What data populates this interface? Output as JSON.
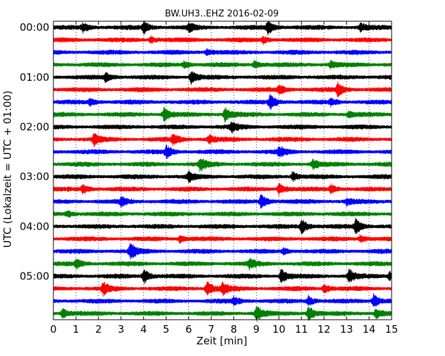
{
  "chart_data": {
    "type": "line",
    "title": "BW.UH3..EHZ 2016-02-09",
    "xlabel": "Zeit  [min]",
    "ylabel": "UTC (Lokalzeit = UTC + 01:00)",
    "xlim": [
      0,
      15
    ],
    "x_ticks": [
      "0",
      "1",
      "2",
      "3",
      "4",
      "5",
      "6",
      "7",
      "8",
      "9",
      "10",
      "11",
      "12",
      "13",
      "14",
      "15"
    ],
    "y_ticks": [
      "00:00",
      "01:00",
      "02:00",
      "03:00",
      "04:00",
      "05:00"
    ],
    "grid": "vertical dotted at each minute",
    "trace_colors": [
      "#000000",
      "#ff0000",
      "#0000ff",
      "#008000"
    ],
    "traces_per_hour": 4,
    "trace_minutes": 15,
    "hours_shown": 6,
    "traces": [
      {
        "start": "00:00",
        "color": "#000000",
        "events": [
          {
            "x": 1.3,
            "amp": 0.55
          },
          {
            "x": 4.0,
            "amp": 0.75
          },
          {
            "x": 6.0,
            "amp": 0.5
          },
          {
            "x": 9.5,
            "amp": 0.9
          },
          {
            "x": 13.6,
            "amp": 0.5
          }
        ]
      },
      {
        "start": "00:15",
        "color": "#ff0000",
        "events": [
          {
            "x": 4.3,
            "amp": 0.4
          },
          {
            "x": 9.3,
            "amp": 0.4
          }
        ]
      },
      {
        "start": "00:30",
        "color": "#0000ff",
        "events": [
          {
            "x": 6.8,
            "amp": 0.4
          }
        ]
      },
      {
        "start": "00:45",
        "color": "#008000",
        "events": [
          {
            "x": 5.8,
            "amp": 0.45
          },
          {
            "x": 8.9,
            "amp": 0.5
          },
          {
            "x": 12.3,
            "amp": 0.4
          }
        ]
      },
      {
        "start": "01:00",
        "color": "#000000",
        "events": [
          {
            "x": 2.3,
            "amp": 0.55
          },
          {
            "x": 6.1,
            "amp": 0.9
          }
        ]
      },
      {
        "start": "01:15",
        "color": "#ff0000",
        "events": [
          {
            "x": 10.0,
            "amp": 0.6
          },
          {
            "x": 12.6,
            "amp": 0.85
          }
        ]
      },
      {
        "start": "01:30",
        "color": "#0000ff",
        "events": [
          {
            "x": 1.6,
            "amp": 0.45
          },
          {
            "x": 9.6,
            "amp": 1.0
          },
          {
            "x": 12.3,
            "amp": 0.4
          }
        ]
      },
      {
        "start": "01:45",
        "color": "#008000",
        "events": [
          {
            "x": 4.9,
            "amp": 0.85
          },
          {
            "x": 7.6,
            "amp": 0.9
          },
          {
            "x": 13.1,
            "amp": 0.4
          }
        ]
      },
      {
        "start": "02:00",
        "color": "#000000",
        "events": [
          {
            "x": 7.9,
            "amp": 0.6
          }
        ]
      },
      {
        "start": "02:15",
        "color": "#ff0000",
        "events": [
          {
            "x": 1.8,
            "amp": 0.8
          },
          {
            "x": 5.3,
            "amp": 0.7
          },
          {
            "x": 6.9,
            "amp": 0.5
          }
        ]
      },
      {
        "start": "02:30",
        "color": "#0000ff",
        "events": [
          {
            "x": 5.0,
            "amp": 0.8
          },
          {
            "x": 10.0,
            "amp": 0.6
          }
        ]
      },
      {
        "start": "02:45",
        "color": "#008000",
        "events": [
          {
            "x": 6.5,
            "amp": 0.8
          },
          {
            "x": 11.5,
            "amp": 0.6
          }
        ]
      },
      {
        "start": "03:00",
        "color": "#000000",
        "events": [
          {
            "x": 6.0,
            "amp": 0.6
          },
          {
            "x": 10.6,
            "amp": 0.6
          }
        ]
      },
      {
        "start": "03:15",
        "color": "#ff0000",
        "events": [
          {
            "x": 1.3,
            "amp": 0.6
          },
          {
            "x": 10.0,
            "amp": 0.7
          },
          {
            "x": 12.3,
            "amp": 0.6
          }
        ]
      },
      {
        "start": "03:30",
        "color": "#0000ff",
        "events": [
          {
            "x": 3.0,
            "amp": 0.5
          },
          {
            "x": 9.2,
            "amp": 0.95
          },
          {
            "x": 13.0,
            "amp": 0.4
          }
        ]
      },
      {
        "start": "03:45",
        "color": "#008000",
        "events": [
          {
            "x": 0.6,
            "amp": 0.4
          }
        ]
      },
      {
        "start": "04:00",
        "color": "#000000",
        "events": [
          {
            "x": 11.0,
            "amp": 0.9
          },
          {
            "x": 13.4,
            "amp": 0.95
          }
        ]
      },
      {
        "start": "04:15",
        "color": "#ff0000",
        "events": [
          {
            "x": 5.6,
            "amp": 0.45
          },
          {
            "x": 13.6,
            "amp": 0.45
          }
        ]
      },
      {
        "start": "04:30",
        "color": "#0000ff",
        "events": [
          {
            "x": 3.4,
            "amp": 1.0
          },
          {
            "x": 10.2,
            "amp": 0.4
          }
        ]
      },
      {
        "start": "04:45",
        "color": "#008000",
        "events": [
          {
            "x": 1.0,
            "amp": 0.6
          },
          {
            "x": 8.7,
            "amp": 0.6
          }
        ]
      },
      {
        "start": "05:00",
        "color": "#000000",
        "events": [
          {
            "x": 4.0,
            "amp": 1.0
          },
          {
            "x": 10.1,
            "amp": 0.9
          },
          {
            "x": 13.1,
            "amp": 0.9
          },
          {
            "x": 14.9,
            "amp": 0.5
          }
        ]
      },
      {
        "start": "05:15",
        "color": "#ff0000",
        "events": [
          {
            "x": 2.2,
            "amp": 0.8
          },
          {
            "x": 6.8,
            "amp": 1.0
          },
          {
            "x": 7.5,
            "amp": 0.7
          },
          {
            "x": 12.0,
            "amp": 0.5
          }
        ]
      },
      {
        "start": "05:30",
        "color": "#0000ff",
        "events": [
          {
            "x": 8.0,
            "amp": 0.5
          },
          {
            "x": 11.3,
            "amp": 0.6
          },
          {
            "x": 14.2,
            "amp": 0.9
          }
        ]
      },
      {
        "start": "05:45",
        "color": "#008000",
        "events": [
          {
            "x": 0.4,
            "amp": 0.6
          },
          {
            "x": 9.0,
            "amp": 1.0
          },
          {
            "x": 11.3,
            "amp": 1.0
          },
          {
            "x": 14.3,
            "amp": 0.6
          }
        ]
      }
    ]
  }
}
